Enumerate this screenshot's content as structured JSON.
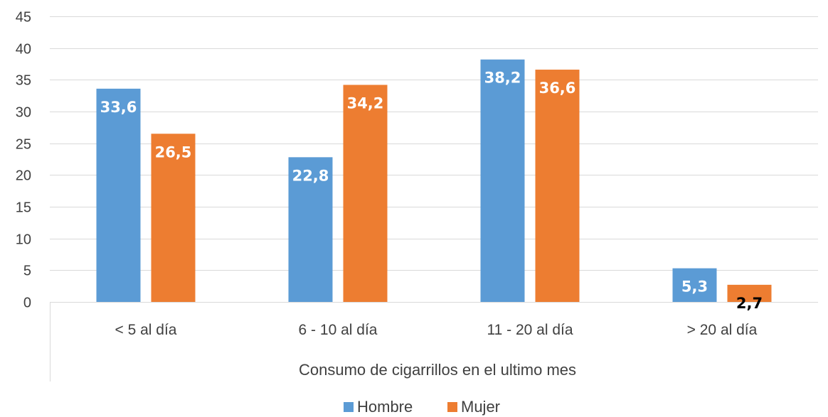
{
  "chart_data": {
    "type": "bar",
    "title": "",
    "xlabel": "Consumo de cigarrillos en el ultimo mes",
    "ylabel": "",
    "ylim": [
      0,
      45
    ],
    "yticks": [
      "0",
      "5",
      "10",
      "15",
      "20",
      "25",
      "30",
      "35",
      "40",
      "45"
    ],
    "categories": [
      "< 5 al día",
      "6 - 10 al día",
      "11 - 20 al día",
      "> 20 al día"
    ],
    "series": [
      {
        "name": "Hombre",
        "color": "#5B9BD5",
        "values": [
          33.6,
          22.8,
          38.2,
          5.3
        ],
        "labels": [
          "33,6",
          "22,8",
          "38,2",
          "5,3"
        ]
      },
      {
        "name": "Mujer",
        "color": "#ED7D31",
        "values": [
          26.5,
          34.2,
          36.6,
          2.7
        ],
        "labels": [
          "26,5",
          "34,2",
          "36,6",
          "2,7"
        ]
      }
    ],
    "grid": true,
    "legend": "bottom"
  }
}
